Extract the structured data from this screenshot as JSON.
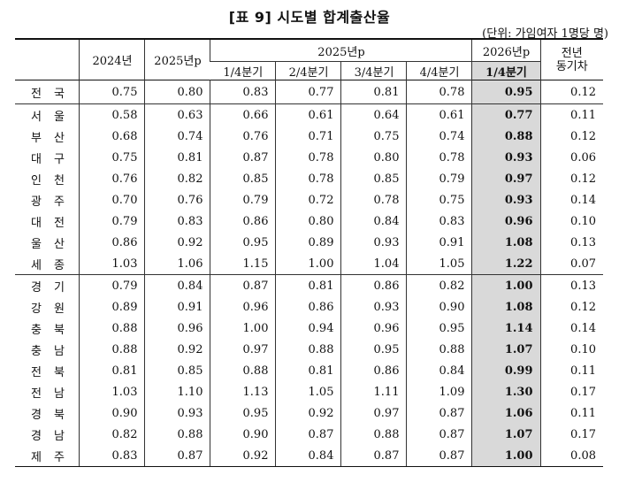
{
  "title": "[표 9] 시도별 합계출산율",
  "unit": "(단위: 가임여자 1명당 명)",
  "headers": {
    "y2024": "2024년",
    "y2025p": "2025년p",
    "y2025p_group": "2025년p",
    "q1": "1/4분기",
    "q2": "2/4분기",
    "q3": "3/4분기",
    "q4": "4/4분기",
    "y2026p": "2026년p",
    "y2026p_q1": "1/4분기",
    "diff_line1": "전년",
    "diff_line2": "동기차"
  },
  "rows": [
    {
      "name1": "전",
      "name2": "국",
      "v": [
        "0.75",
        "0.80",
        "0.83",
        "0.77",
        "0.81",
        "0.78",
        "0.95",
        "0.12"
      ]
    },
    {
      "name1": "서",
      "name2": "울",
      "v": [
        "0.58",
        "0.63",
        "0.66",
        "0.61",
        "0.64",
        "0.61",
        "0.77",
        "0.11"
      ]
    },
    {
      "name1": "부",
      "name2": "산",
      "v": [
        "0.68",
        "0.74",
        "0.76",
        "0.71",
        "0.75",
        "0.74",
        "0.88",
        "0.12"
      ]
    },
    {
      "name1": "대",
      "name2": "구",
      "v": [
        "0.75",
        "0.81",
        "0.87",
        "0.78",
        "0.80",
        "0.78",
        "0.93",
        "0.06"
      ]
    },
    {
      "name1": "인",
      "name2": "천",
      "v": [
        "0.76",
        "0.82",
        "0.85",
        "0.78",
        "0.85",
        "0.79",
        "0.97",
        "0.12"
      ]
    },
    {
      "name1": "광",
      "name2": "주",
      "v": [
        "0.70",
        "0.76",
        "0.79",
        "0.72",
        "0.78",
        "0.75",
        "0.93",
        "0.14"
      ]
    },
    {
      "name1": "대",
      "name2": "전",
      "v": [
        "0.79",
        "0.83",
        "0.86",
        "0.80",
        "0.84",
        "0.83",
        "0.96",
        "0.10"
      ]
    },
    {
      "name1": "울",
      "name2": "산",
      "v": [
        "0.86",
        "0.92",
        "0.95",
        "0.89",
        "0.93",
        "0.91",
        "1.08",
        "0.13"
      ]
    },
    {
      "name1": "세",
      "name2": "종",
      "v": [
        "1.03",
        "1.06",
        "1.15",
        "1.00",
        "1.04",
        "1.05",
        "1.22",
        "0.07"
      ]
    },
    {
      "name1": "경",
      "name2": "기",
      "v": [
        "0.79",
        "0.84",
        "0.87",
        "0.81",
        "0.86",
        "0.82",
        "1.00",
        "0.13"
      ]
    },
    {
      "name1": "강",
      "name2": "원",
      "v": [
        "0.89",
        "0.91",
        "0.96",
        "0.86",
        "0.93",
        "0.90",
        "1.08",
        "0.12"
      ]
    },
    {
      "name1": "충",
      "name2": "북",
      "v": [
        "0.88",
        "0.96",
        "1.00",
        "0.94",
        "0.96",
        "0.95",
        "1.14",
        "0.14"
      ]
    },
    {
      "name1": "충",
      "name2": "남",
      "v": [
        "0.88",
        "0.92",
        "0.97",
        "0.88",
        "0.95",
        "0.88",
        "1.07",
        "0.10"
      ]
    },
    {
      "name1": "전",
      "name2": "북",
      "v": [
        "0.81",
        "0.85",
        "0.88",
        "0.81",
        "0.86",
        "0.84",
        "0.99",
        "0.11"
      ]
    },
    {
      "name1": "전",
      "name2": "남",
      "v": [
        "1.03",
        "1.10",
        "1.13",
        "1.05",
        "1.11",
        "1.09",
        "1.30",
        "0.17"
      ]
    },
    {
      "name1": "경",
      "name2": "북",
      "v": [
        "0.90",
        "0.93",
        "0.95",
        "0.92",
        "0.97",
        "0.87",
        "1.06",
        "0.11"
      ]
    },
    {
      "name1": "경",
      "name2": "남",
      "v": [
        "0.82",
        "0.88",
        "0.90",
        "0.87",
        "0.88",
        "0.87",
        "1.07",
        "0.17"
      ]
    },
    {
      "name1": "제",
      "name2": "주",
      "v": [
        "0.83",
        "0.87",
        "0.92",
        "0.84",
        "0.87",
        "0.87",
        "1.00",
        "0.08"
      ]
    }
  ],
  "group_starts": [
    1,
    9
  ]
}
